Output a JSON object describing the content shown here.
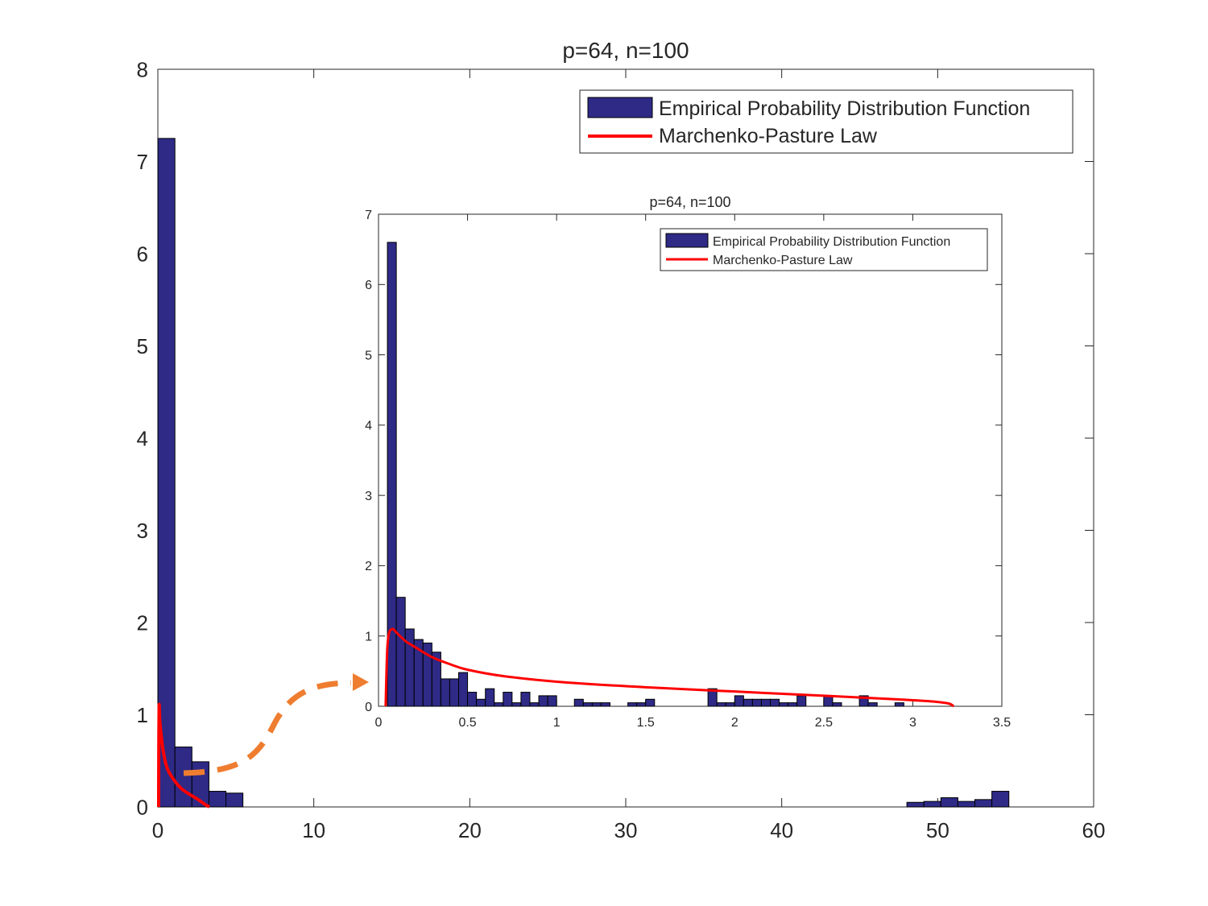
{
  "chart_data": [
    {
      "id": "main",
      "type": "bar",
      "title": "p=64, n=100",
      "xlabel": "",
      "ylabel": "",
      "xlim": [
        0,
        60
      ],
      "ylim": [
        0,
        8
      ],
      "xticks": [
        0,
        10,
        20,
        30,
        40,
        50,
        60
      ],
      "yticks": [
        0,
        1,
        2,
        3,
        4,
        5,
        6,
        7,
        8
      ],
      "grid": false,
      "legend": {
        "position": "top-right",
        "entries": [
          "Empirical Probability Distribution Function",
          "Marchenko-Pasture Law"
        ]
      },
      "series": [
        {
          "name": "Empirical Probability Distribution Function",
          "kind": "histogram",
          "bin_width": 1.09,
          "color": "#2e2a86",
          "bins": [
            {
              "x": 0.55,
              "y": 7.25
            },
            {
              "x": 1.64,
              "y": 0.65
            },
            {
              "x": 2.73,
              "y": 0.49
            },
            {
              "x": 3.82,
              "y": 0.17
            },
            {
              "x": 4.91,
              "y": 0.15
            },
            {
              "x": 48.57,
              "y": 0.05
            },
            {
              "x": 49.66,
              "y": 0.06
            },
            {
              "x": 50.75,
              "y": 0.1
            },
            {
              "x": 51.84,
              "y": 0.06
            },
            {
              "x": 52.93,
              "y": 0.08
            },
            {
              "x": 54.02,
              "y": 0.17
            }
          ]
        },
        {
          "name": "Marchenko-Pasture Law",
          "kind": "line",
          "color": "#ff0000",
          "x": [
            0.05,
            0.06,
            0.08,
            0.12,
            0.2,
            0.35,
            0.6,
            1.0,
            1.5,
            2.0,
            2.5,
            3.0,
            3.3
          ],
          "y": [
            0.0,
            0.6,
            1.1,
            0.95,
            0.8,
            0.6,
            0.42,
            0.3,
            0.2,
            0.14,
            0.09,
            0.03,
            0.0
          ]
        }
      ]
    },
    {
      "id": "inset",
      "type": "bar",
      "title": "p=64, n=100",
      "xlabel": "",
      "ylabel": "",
      "xlim": [
        0,
        3.5
      ],
      "ylim": [
        0,
        7
      ],
      "xticks": [
        0,
        0.5,
        1,
        1.5,
        2,
        2.5,
        3,
        3.5
      ],
      "yticks": [
        0,
        1,
        2,
        3,
        4,
        5,
        6,
        7
      ],
      "grid": false,
      "legend": {
        "position": "top-right",
        "entries": [
          "Empirical Probability Distribution Function",
          "Marchenko-Pasture Law"
        ]
      },
      "series": [
        {
          "name": "Empirical Probability Distribution Function",
          "kind": "histogram",
          "bin_width": 0.05,
          "color": "#2e2a86",
          "bins": [
            {
              "x": 0.075,
              "y": 6.6
            },
            {
              "x": 0.125,
              "y": 1.55
            },
            {
              "x": 0.175,
              "y": 1.1
            },
            {
              "x": 0.225,
              "y": 0.95
            },
            {
              "x": 0.275,
              "y": 0.9
            },
            {
              "x": 0.325,
              "y": 0.77
            },
            {
              "x": 0.375,
              "y": 0.39
            },
            {
              "x": 0.425,
              "y": 0.39
            },
            {
              "x": 0.475,
              "y": 0.48
            },
            {
              "x": 0.525,
              "y": 0.2
            },
            {
              "x": 0.575,
              "y": 0.1
            },
            {
              "x": 0.625,
              "y": 0.25
            },
            {
              "x": 0.675,
              "y": 0.05
            },
            {
              "x": 0.725,
              "y": 0.2
            },
            {
              "x": 0.775,
              "y": 0.05
            },
            {
              "x": 0.825,
              "y": 0.2
            },
            {
              "x": 0.875,
              "y": 0.05
            },
            {
              "x": 0.925,
              "y": 0.15
            },
            {
              "x": 0.975,
              "y": 0.15
            },
            {
              "x": 1.125,
              "y": 0.1
            },
            {
              "x": 1.175,
              "y": 0.05
            },
            {
              "x": 1.225,
              "y": 0.05
            },
            {
              "x": 1.275,
              "y": 0.05
            },
            {
              "x": 1.425,
              "y": 0.05
            },
            {
              "x": 1.475,
              "y": 0.05
            },
            {
              "x": 1.525,
              "y": 0.1
            },
            {
              "x": 1.875,
              "y": 0.25
            },
            {
              "x": 1.925,
              "y": 0.05
            },
            {
              "x": 1.975,
              "y": 0.05
            },
            {
              "x": 2.025,
              "y": 0.15
            },
            {
              "x": 2.075,
              "y": 0.1
            },
            {
              "x": 2.125,
              "y": 0.1
            },
            {
              "x": 2.175,
              "y": 0.1
            },
            {
              "x": 2.225,
              "y": 0.1
            },
            {
              "x": 2.275,
              "y": 0.05
            },
            {
              "x": 2.325,
              "y": 0.05
            },
            {
              "x": 2.375,
              "y": 0.15
            },
            {
              "x": 2.525,
              "y": 0.15
            },
            {
              "x": 2.575,
              "y": 0.05
            },
            {
              "x": 2.725,
              "y": 0.15
            },
            {
              "x": 2.775,
              "y": 0.05
            },
            {
              "x": 2.925,
              "y": 0.05
            }
          ]
        },
        {
          "name": "Marchenko-Pasture Law",
          "kind": "line",
          "color": "#ff0000",
          "x": [
            0.04,
            0.045,
            0.05,
            0.06,
            0.08,
            0.1,
            0.15,
            0.2,
            0.3,
            0.4,
            0.5,
            0.7,
            1.0,
            1.5,
            2.0,
            2.5,
            2.9,
            3.1,
            3.2,
            3.23
          ],
          "y": [
            0.0,
            0.5,
            0.85,
            1.05,
            1.1,
            1.05,
            0.93,
            0.85,
            0.7,
            0.6,
            0.52,
            0.43,
            0.35,
            0.27,
            0.21,
            0.15,
            0.1,
            0.07,
            0.04,
            0.0
          ]
        }
      ]
    }
  ],
  "annotation": {
    "arrow_color": "#ef7d2f",
    "meaning": "zoom-in arrow from main plot low range to inset"
  }
}
